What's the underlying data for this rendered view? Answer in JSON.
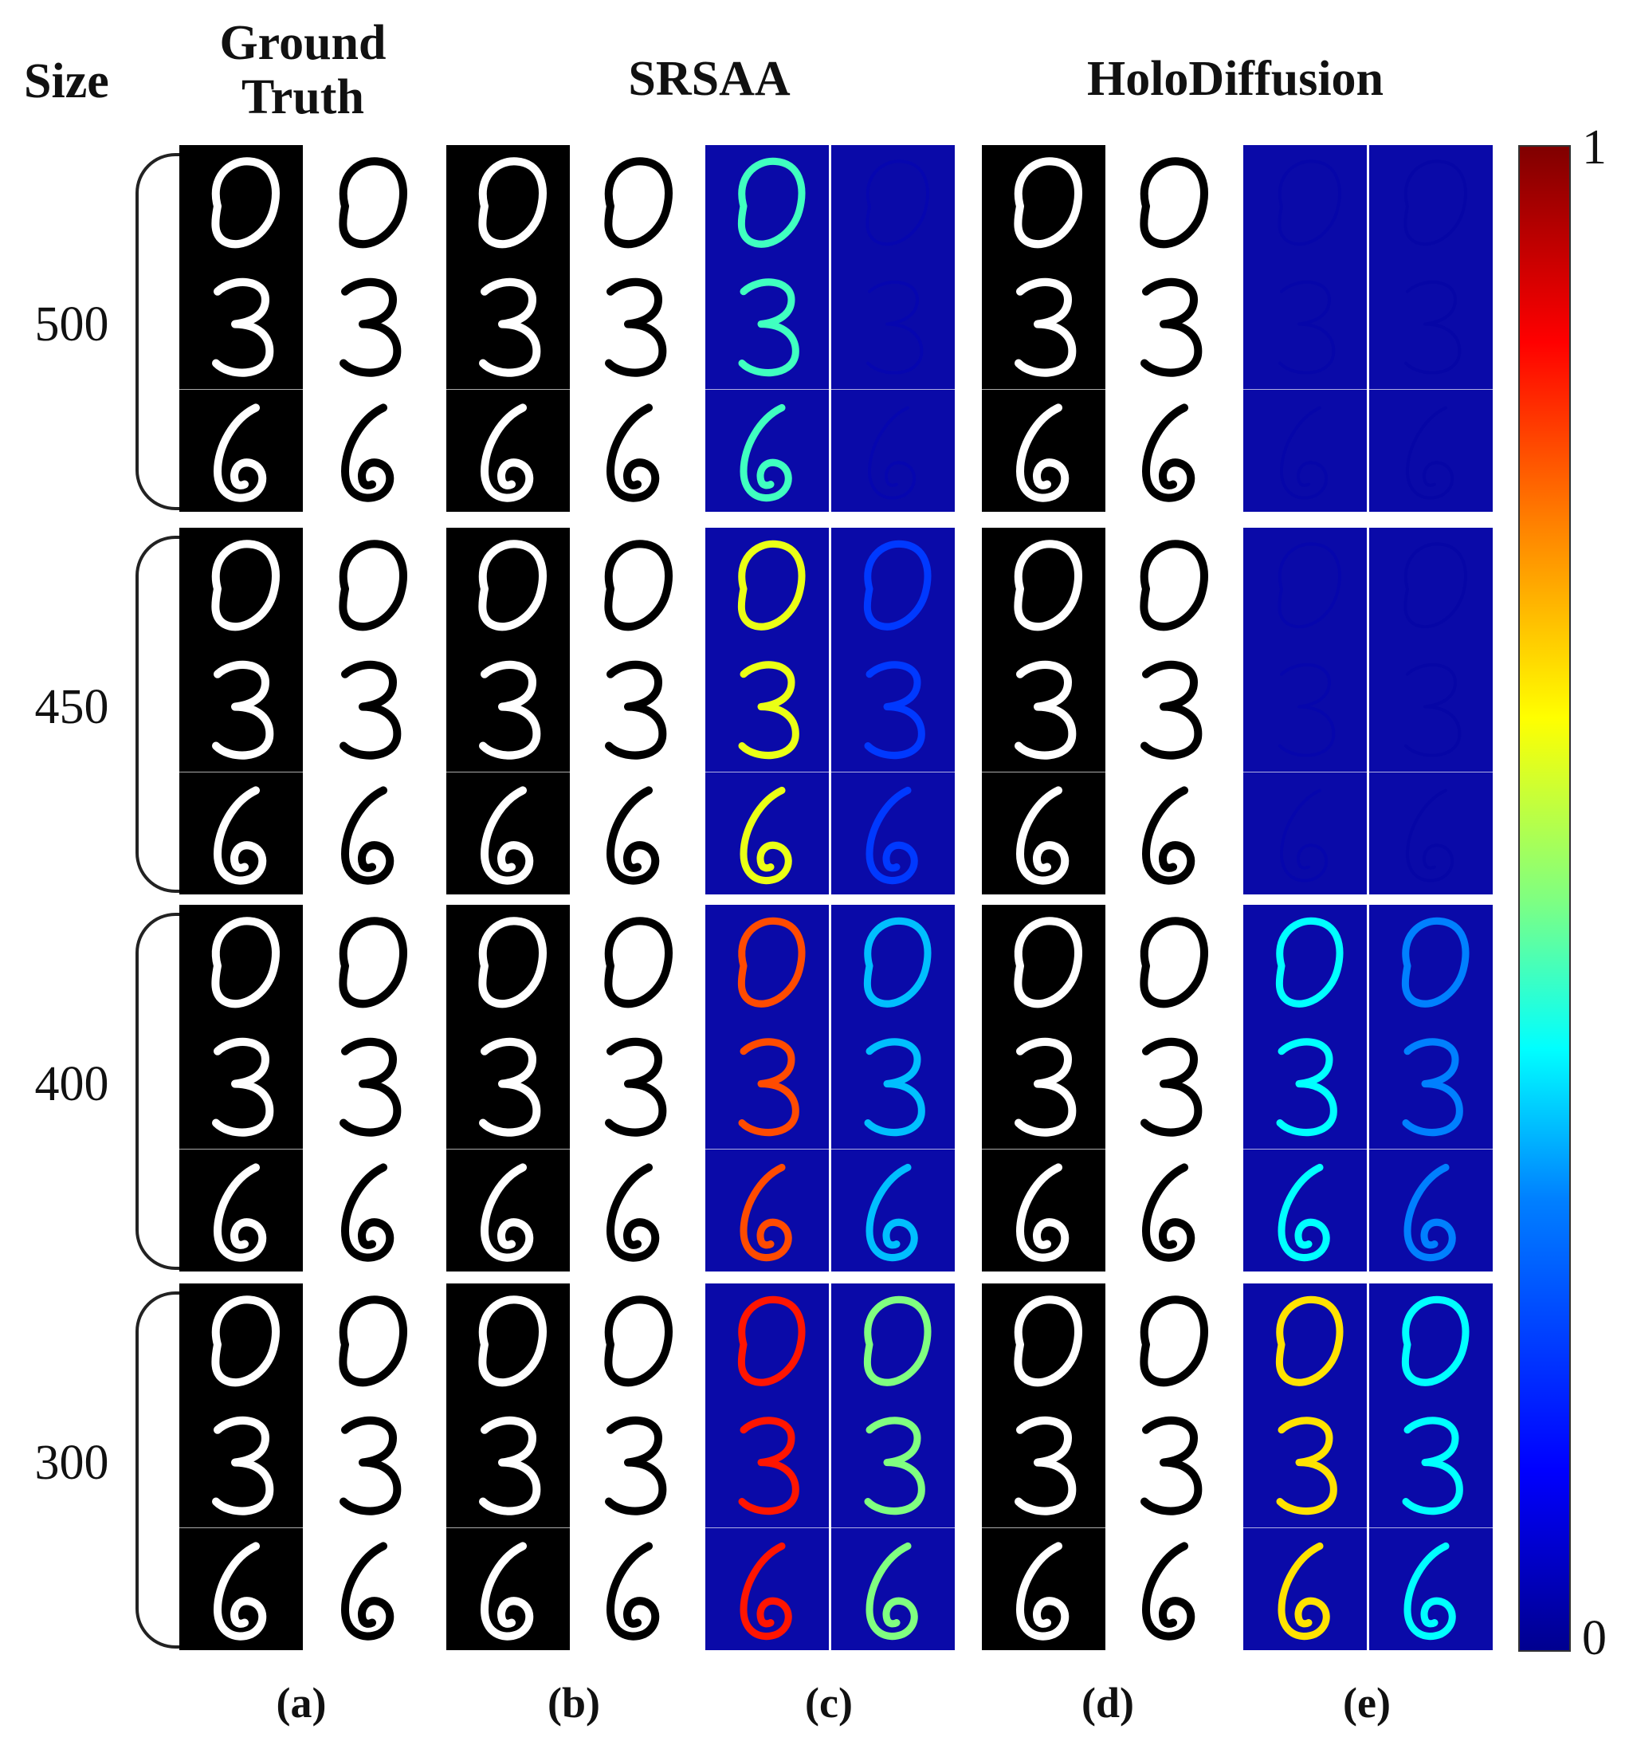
{
  "headers": {
    "size": "Size",
    "ground_truth": "Ground\nTruth",
    "srsaa": "SRSAA",
    "holodiffusion": "HoloDiffusion"
  },
  "rows": [
    {
      "size": "500",
      "srsaa_err": 0.45,
      "srsaa_err2": 0.05,
      "holo_err": 0.03,
      "holo_err2": 0.02
    },
    {
      "size": "450",
      "srsaa_err": 0.6,
      "srsaa_err2": 0.2,
      "holo_err": 0.04,
      "holo_err2": 0.02
    },
    {
      "size": "400",
      "srsaa_err": 0.8,
      "srsaa_err2": 0.35,
      "holo_err": 0.4,
      "holo_err2": 0.3
    },
    {
      "size": "300",
      "srsaa_err": 0.85,
      "srsaa_err2": 0.5,
      "holo_err": 0.65,
      "holo_err2": 0.4
    }
  ],
  "digits": [
    "0",
    "3",
    "6"
  ],
  "subfig_labels": [
    "(a)",
    "(b)",
    "(c)",
    "(d)",
    "(e)"
  ],
  "colorbar": {
    "max": "1",
    "min": "0"
  },
  "colors": {
    "error_bg": "#0a0aa8",
    "dark_tile": "#000000",
    "light_tile": "#ffffff"
  }
}
